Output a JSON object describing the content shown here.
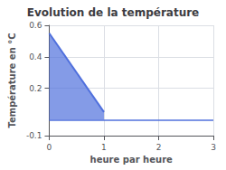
{
  "chart_data": {
    "type": "area",
    "title": "Evolution de la température",
    "xlabel": "heure par heure",
    "ylabel": "Température en °C",
    "x": [
      0,
      1
    ],
    "values": [
      0.55,
      0.05
    ],
    "baseline": 0,
    "xlim": [
      0,
      3
    ],
    "ylim": [
      -0.1,
      0.6
    ],
    "xticks": [
      0,
      1,
      2,
      3
    ],
    "yticks": [
      -0.1,
      0.2,
      0.4,
      0.6
    ],
    "grid": true
  }
}
